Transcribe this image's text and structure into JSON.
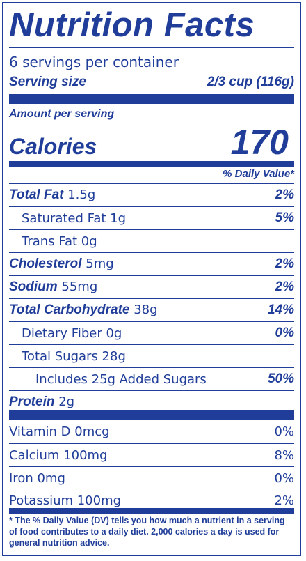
{
  "title": "Nutrition Facts",
  "servings": "6 servings per container",
  "serving_size": {
    "label": "Serving size",
    "value": "2/3 cup (116g)"
  },
  "amount_per_serving": "Amount per serving",
  "calories": {
    "label": "Calories",
    "value": "170"
  },
  "daily_value_header": "% Daily Value*",
  "nutrients": [
    {
      "name": "Total Fat",
      "amount": "1.5g",
      "dv": "2%"
    },
    {
      "name": "Saturated Fat 1g",
      "amount": "",
      "dv": "5%"
    },
    {
      "name": "Trans Fat 0g",
      "amount": "",
      "dv": ""
    },
    {
      "name": "Cholesterol",
      "amount": "5mg",
      "dv": "2%"
    },
    {
      "name": "Sodium",
      "amount": "55mg",
      "dv": "2%"
    },
    {
      "name": "Total Carbohydrate",
      "amount": "38g",
      "dv": "14%"
    },
    {
      "name": "Dietary Fiber 0g",
      "amount": "",
      "dv": "0%"
    },
    {
      "name": "Total Sugars 28g",
      "amount": "",
      "dv": ""
    },
    {
      "name": "Includes 25g Added Sugars",
      "amount": "",
      "dv": "50%"
    },
    {
      "name": "Protein",
      "amount": "2g",
      "dv": ""
    }
  ],
  "vitamins": [
    {
      "name": "Vitamin D 0mcg",
      "dv": "0%"
    },
    {
      "name": "Calcium 100mg",
      "dv": "8%"
    },
    {
      "name": "Iron 0mg",
      "dv": "0%"
    },
    {
      "name": "Potassium 100mg",
      "dv": "2%"
    }
  ],
  "footnote": "* The % Daily Value (DV) tells you how much a nutrient in a serving of food contributes to a daily diet. 2,000 calories a day is used for general nutrition advice.",
  "colors": {
    "ink": "#1f3d99",
    "background": "#ffffff"
  }
}
